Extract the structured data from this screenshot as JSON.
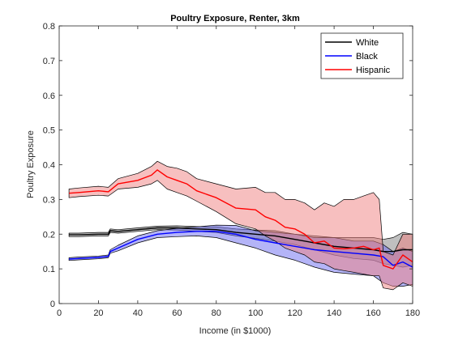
{
  "chart_data": {
    "type": "line",
    "title": "Poultry Exposure, Renter, 3km",
    "xlabel": "Income (in $1000)",
    "ylabel": "Poultry Exposure",
    "xlim": [
      0,
      180
    ],
    "ylim": [
      0,
      0.8
    ],
    "xticks": [
      "0",
      "20",
      "40",
      "60",
      "80",
      "100",
      "120",
      "140",
      "160",
      "180"
    ],
    "yticks": [
      "0",
      "0.1",
      "0.2",
      "0.3",
      "0.4",
      "0.5",
      "0.6",
      "0.7",
      "0.8"
    ],
    "grid": false,
    "legend_position": "top-right",
    "series": [
      {
        "name": "White",
        "color": "#000000",
        "band_color": "#808080",
        "x": [
          5,
          10,
          20,
          25,
          26,
          30,
          40,
          50,
          60,
          70,
          80,
          90,
          100,
          110,
          120,
          130,
          140,
          150,
          160,
          165,
          170,
          175,
          180
        ],
        "y": [
          0.198,
          0.198,
          0.2,
          0.2,
          0.21,
          0.208,
          0.213,
          0.218,
          0.218,
          0.215,
          0.213,
          0.205,
          0.2,
          0.195,
          0.185,
          0.175,
          0.165,
          0.16,
          0.155,
          0.15,
          0.15,
          0.155,
          0.155
        ],
        "lower": [
          0.193,
          0.193,
          0.195,
          0.195,
          0.205,
          0.203,
          0.208,
          0.213,
          0.212,
          0.208,
          0.205,
          0.195,
          0.188,
          0.18,
          0.17,
          0.155,
          0.14,
          0.13,
          0.125,
          0.115,
          0.11,
          0.105,
          0.11
        ],
        "upper": [
          0.203,
          0.203,
          0.205,
          0.205,
          0.215,
          0.213,
          0.218,
          0.223,
          0.224,
          0.222,
          0.221,
          0.215,
          0.212,
          0.21,
          0.2,
          0.195,
          0.19,
          0.19,
          0.19,
          0.185,
          0.19,
          0.205,
          0.2
        ]
      },
      {
        "name": "Black",
        "color": "#0000ff",
        "band_color": "#6a6af0",
        "x": [
          5,
          10,
          20,
          25,
          26,
          30,
          40,
          50,
          60,
          70,
          80,
          90,
          100,
          110,
          120,
          130,
          140,
          150,
          160,
          165,
          170,
          175,
          180
        ],
        "y": [
          0.128,
          0.13,
          0.133,
          0.136,
          0.15,
          0.16,
          0.185,
          0.2,
          0.205,
          0.208,
          0.208,
          0.2,
          0.185,
          0.175,
          0.165,
          0.155,
          0.15,
          0.145,
          0.14,
          0.135,
          0.11,
          0.12,
          0.105
        ],
        "lower": [
          0.124,
          0.126,
          0.129,
          0.132,
          0.145,
          0.152,
          0.175,
          0.19,
          0.193,
          0.195,
          0.19,
          0.175,
          0.16,
          0.14,
          0.125,
          0.105,
          0.09,
          0.085,
          0.08,
          0.06,
          0.05,
          0.05,
          0.055
        ],
        "upper": [
          0.132,
          0.134,
          0.137,
          0.14,
          0.155,
          0.168,
          0.195,
          0.21,
          0.217,
          0.221,
          0.226,
          0.225,
          0.21,
          0.205,
          0.2,
          0.19,
          0.19,
          0.18,
          0.18,
          0.17,
          0.15,
          0.16,
          0.15
        ]
      },
      {
        "name": "Hispanic",
        "color": "#ff0000",
        "band_color": "#f08080",
        "x": [
          5,
          10,
          20,
          25,
          30,
          40,
          47,
          50,
          55,
          60,
          65,
          70,
          80,
          90,
          100,
          105,
          110,
          115,
          120,
          125,
          130,
          135,
          140,
          145,
          150,
          155,
          160,
          163,
          165,
          170,
          175,
          180
        ],
        "y": [
          0.318,
          0.32,
          0.325,
          0.322,
          0.345,
          0.355,
          0.37,
          0.385,
          0.365,
          0.355,
          0.345,
          0.325,
          0.305,
          0.275,
          0.27,
          0.25,
          0.24,
          0.22,
          0.215,
          0.2,
          0.175,
          0.18,
          0.16,
          0.158,
          0.16,
          0.165,
          0.155,
          0.16,
          0.11,
          0.1,
          0.14,
          0.12
        ],
        "lower": [
          0.305,
          0.308,
          0.312,
          0.31,
          0.33,
          0.335,
          0.345,
          0.355,
          0.33,
          0.32,
          0.31,
          0.295,
          0.265,
          0.23,
          0.215,
          0.195,
          0.18,
          0.16,
          0.15,
          0.14,
          0.12,
          0.115,
          0.1,
          0.095,
          0.09,
          0.085,
          0.08,
          0.08,
          0.045,
          0.04,
          0.06,
          0.05
        ],
        "upper": [
          0.33,
          0.333,
          0.338,
          0.335,
          0.36,
          0.375,
          0.395,
          0.41,
          0.395,
          0.39,
          0.38,
          0.36,
          0.345,
          0.33,
          0.335,
          0.32,
          0.32,
          0.3,
          0.3,
          0.29,
          0.27,
          0.29,
          0.28,
          0.3,
          0.3,
          0.31,
          0.32,
          0.3,
          0.15,
          0.14,
          0.2,
          0.2
        ]
      }
    ]
  }
}
